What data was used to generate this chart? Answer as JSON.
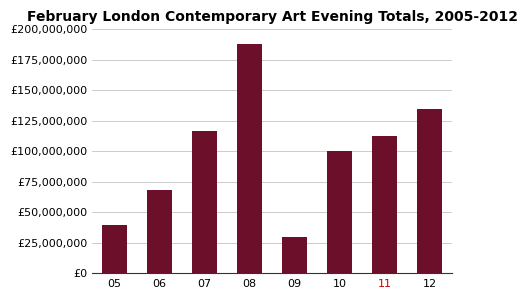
{
  "title": "February London Contemporary Art Evening Totals, 2005-2012",
  "categories": [
    "05",
    "06",
    "07",
    "08",
    "09",
    "10",
    "11",
    "12"
  ],
  "values": [
    40000000,
    68000000,
    117000000,
    188000000,
    30000000,
    100000000,
    113000000,
    135000000
  ],
  "bar_color": "#6B0F2B",
  "background_color": "#FFFFFF",
  "ylim": [
    0,
    200000000
  ],
  "yticks": [
    0,
    25000000,
    50000000,
    75000000,
    100000000,
    125000000,
    150000000,
    175000000,
    200000000
  ],
  "grid_color": "#CCCCCC",
  "title_fontsize": 10,
  "tick_fontsize": 8,
  "highlight_tick": "11",
  "highlight_color": "#CC0000"
}
